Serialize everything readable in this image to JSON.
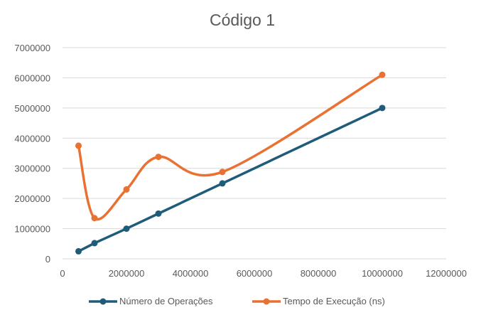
{
  "chart_data": {
    "type": "line",
    "title": "Código 1",
    "xlabel": "",
    "ylabel": "",
    "xlim": [
      0,
      12000000
    ],
    "ylim": [
      0,
      7000000
    ],
    "x_ticks": [
      "0",
      "2000000",
      "4000000",
      "6000000",
      "8000000",
      "10000000",
      "12000000"
    ],
    "y_ticks": [
      "0",
      "1000000",
      "2000000",
      "3000000",
      "4000000",
      "5000000",
      "6000000",
      "7000000"
    ],
    "grid": "horizontal",
    "legend_position": "bottom",
    "series": [
      {
        "name": "Número de Operações",
        "color": "#1f5c7a",
        "smooth": false,
        "x": [
          500000,
          1000000,
          2000000,
          3000000,
          5000000,
          10000000
        ],
        "y": [
          250000,
          520000,
          1000000,
          1500000,
          2500000,
          5000000
        ]
      },
      {
        "name": "Tempo de Execução (ns)",
        "color": "#e97132",
        "smooth": true,
        "x": [
          500000,
          1000000,
          2000000,
          3000000,
          5000000,
          10000000
        ],
        "y": [
          3750000,
          1350000,
          2300000,
          3380000,
          2880000,
          6100000
        ]
      }
    ]
  }
}
